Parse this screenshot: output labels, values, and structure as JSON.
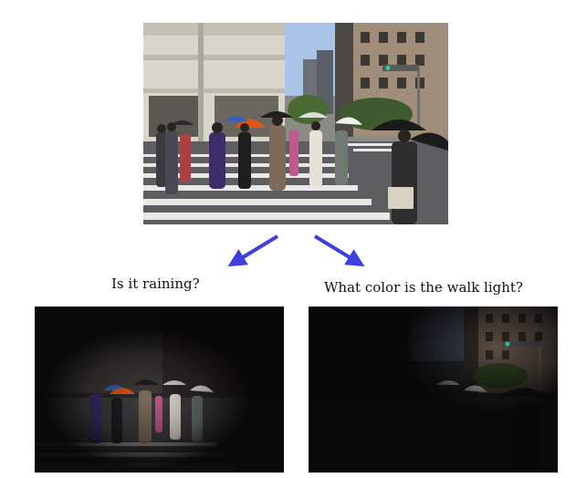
{
  "questions": {
    "left": "Is it raining?",
    "right": "What color is the walk light?"
  },
  "colors": {
    "arrow": "#3f3fe0",
    "sky": "#a9c4e6",
    "road": "#5e5e60",
    "crosswalk": "#e8e8e6",
    "orange_umbrella": "#e0541c",
    "blue_umbrella": "#3a5fb8",
    "walk_light": "#33d6a0",
    "attention_dark": "#060606"
  },
  "icons": {
    "arrow_left": "arrow-down-left-icon",
    "arrow_right": "arrow-down-right-icon"
  }
}
